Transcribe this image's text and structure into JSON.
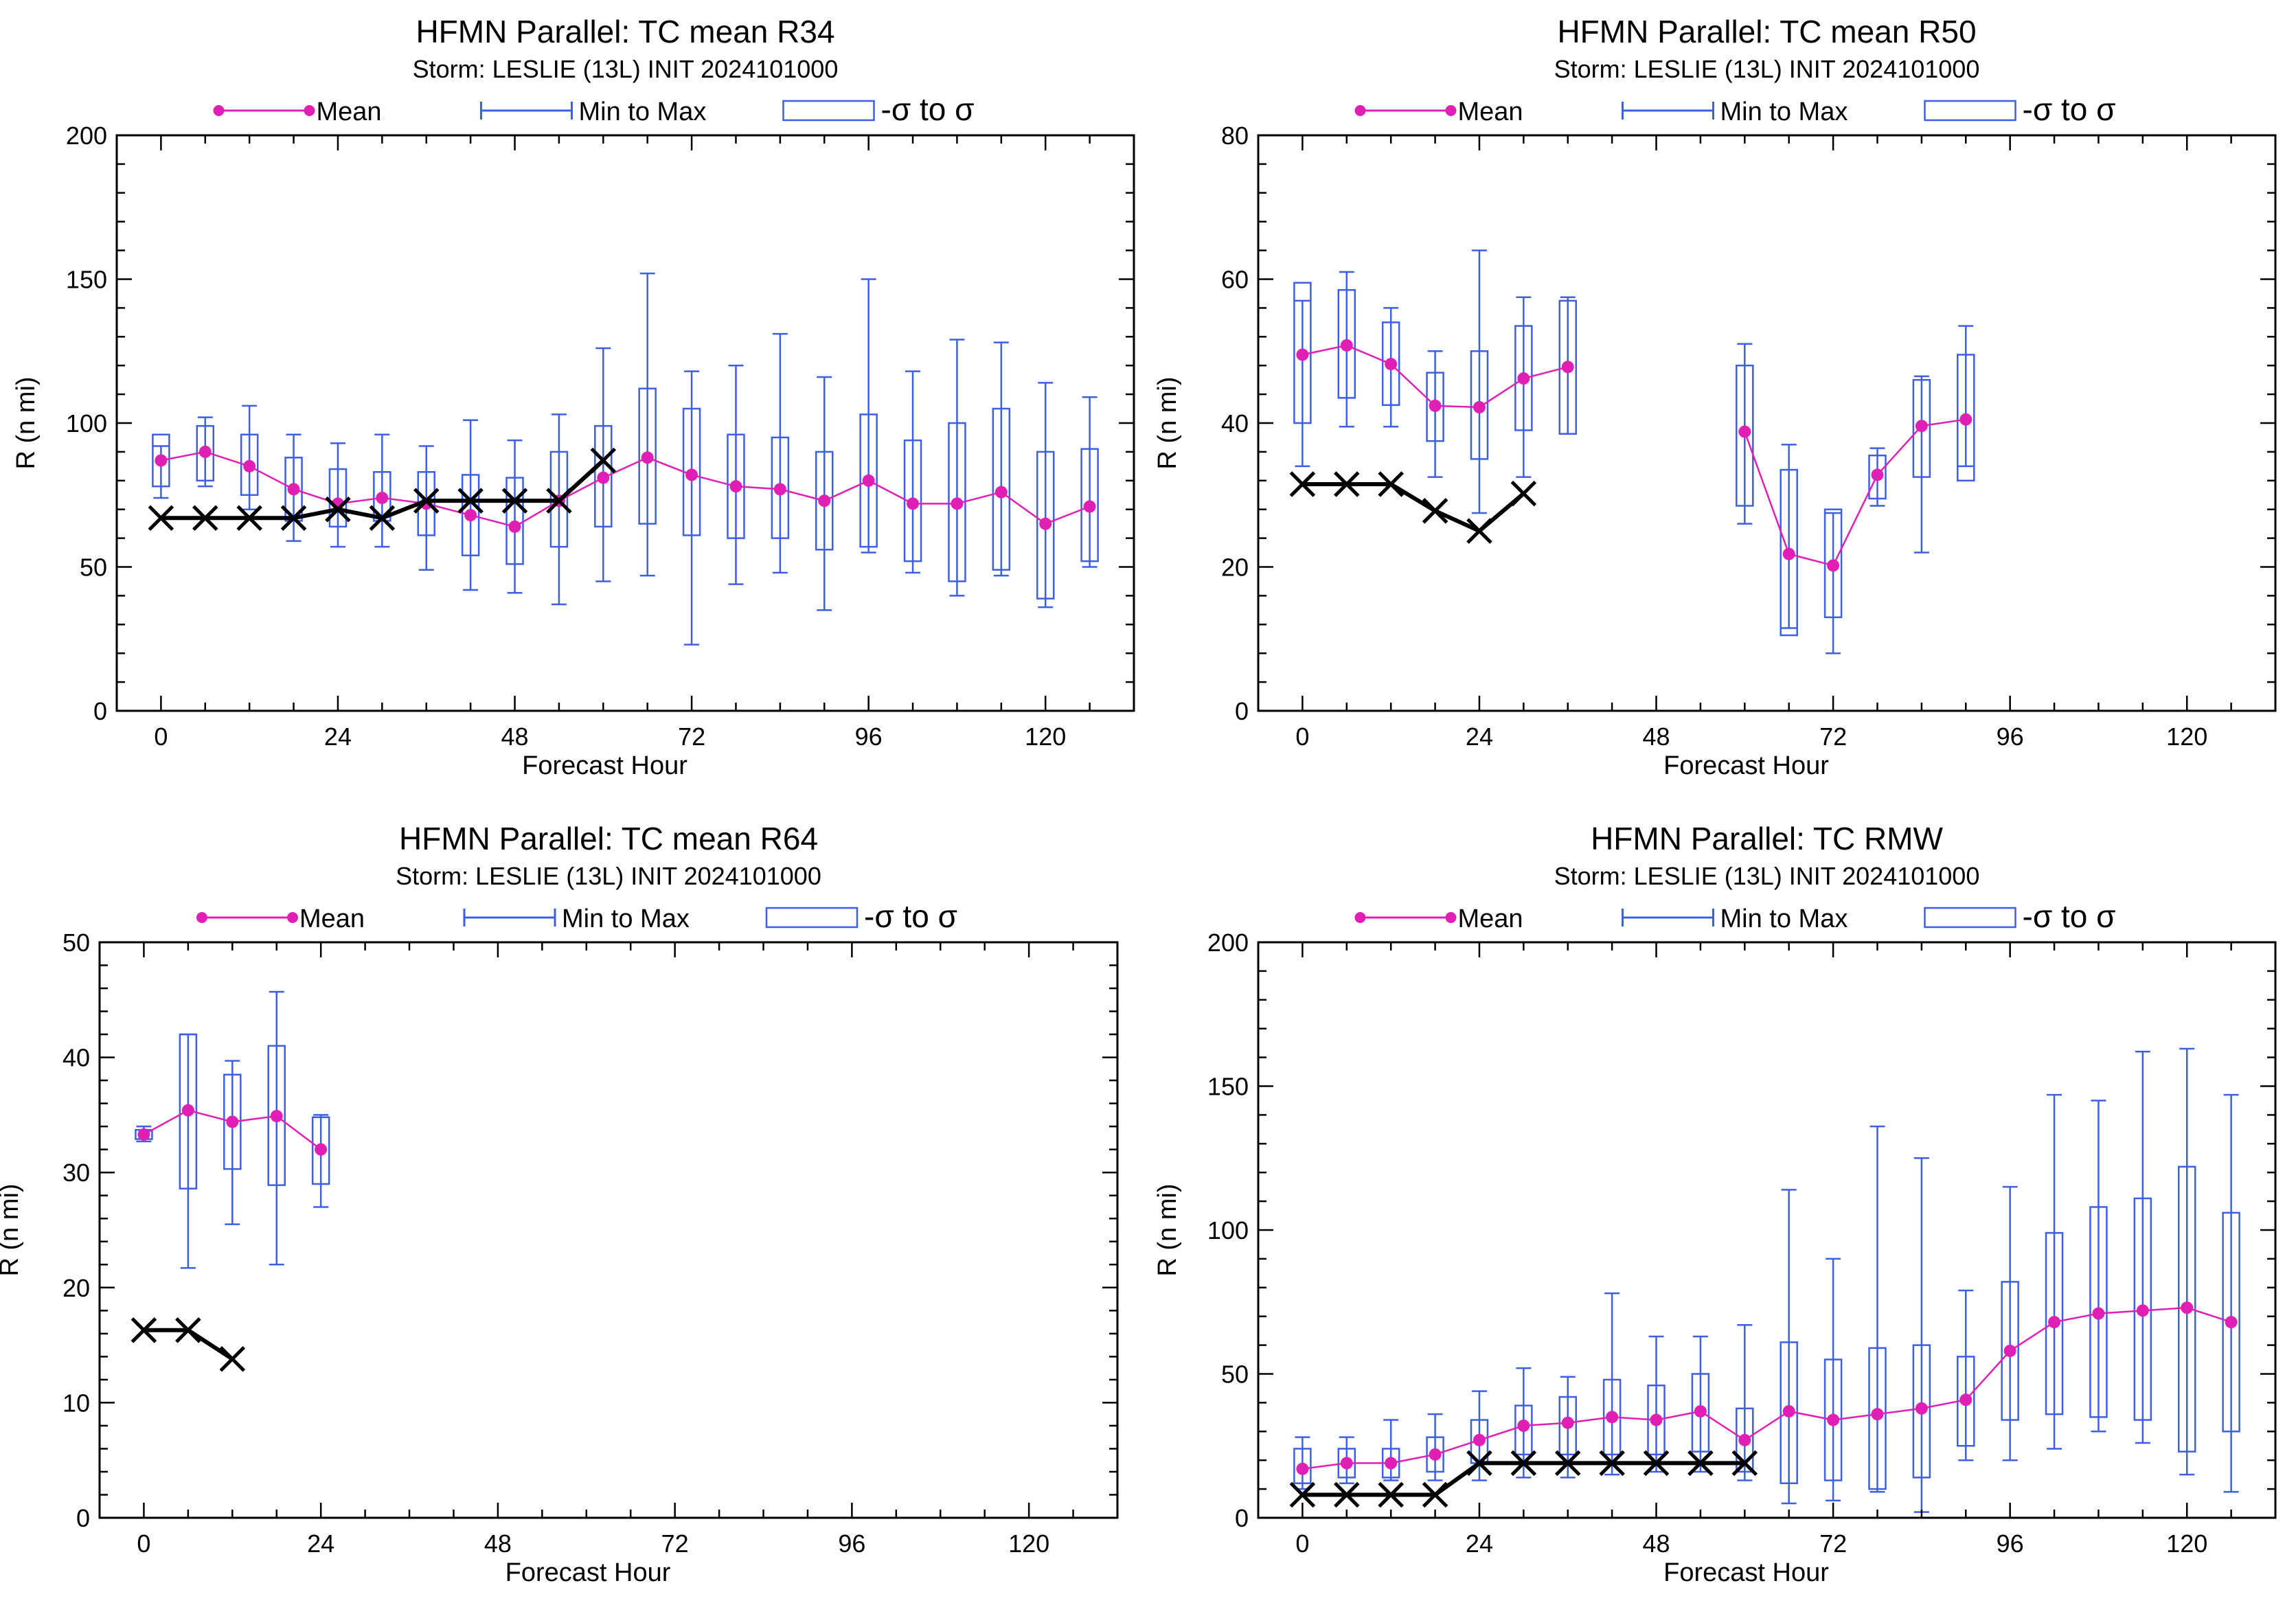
{
  "legend": {
    "mean_label": "Mean",
    "minmax_label": "Min to Max",
    "sigma_label": "-σ to σ"
  },
  "colors": {
    "mean": "#e01fb4",
    "box": "#3d5fe6",
    "best_track": "#000000",
    "frame": "#000000"
  },
  "chart_data": [
    {
      "type": "box",
      "title": "HFMN Parallel: TC mean R34",
      "subtitle": "Storm: LESLIE (13L) INIT 2024101000",
      "xlabel": "Forecast Hour",
      "ylabel": "R (n mi)",
      "xlim": [
        -6,
        132
      ],
      "ylim": [
        0,
        200
      ],
      "xticks": [
        0,
        24,
        48,
        72,
        96,
        120
      ],
      "yticks": [
        0,
        50,
        100,
        150,
        200
      ],
      "grid": false,
      "legend_position": "top",
      "mean": [
        [
          0,
          87
        ],
        [
          6,
          90
        ],
        [
          12,
          85
        ],
        [
          18,
          77
        ],
        [
          24,
          72
        ],
        [
          30,
          74
        ],
        [
          36,
          72
        ],
        [
          42,
          68
        ],
        [
          48,
          64
        ],
        [
          54,
          73
        ],
        [
          60,
          81
        ],
        [
          66,
          88
        ],
        [
          72,
          82
        ],
        [
          78,
          78
        ],
        [
          84,
          77
        ],
        [
          90,
          73
        ],
        [
          96,
          80
        ],
        [
          102,
          72
        ],
        [
          108,
          72
        ],
        [
          114,
          76
        ],
        [
          120,
          65
        ],
        [
          126,
          71
        ]
      ],
      "min_max": [
        [
          0,
          74,
          92
        ],
        [
          6,
          78,
          102
        ],
        [
          12,
          70,
          106
        ],
        [
          18,
          59,
          96
        ],
        [
          24,
          57,
          93
        ],
        [
          30,
          57,
          96
        ],
        [
          36,
          49,
          92
        ],
        [
          42,
          42,
          101
        ],
        [
          48,
          41,
          94
        ],
        [
          54,
          37,
          103
        ],
        [
          60,
          45,
          126
        ],
        [
          66,
          47,
          152
        ],
        [
          72,
          23,
          118
        ],
        [
          78,
          44,
          120
        ],
        [
          84,
          48,
          131
        ],
        [
          90,
          35,
          116
        ],
        [
          96,
          55,
          150
        ],
        [
          102,
          48,
          118
        ],
        [
          108,
          40,
          129
        ],
        [
          114,
          47,
          128
        ],
        [
          120,
          36,
          114
        ],
        [
          126,
          50,
          109
        ]
      ],
      "sigma_box": [
        [
          0,
          78,
          96
        ],
        [
          6,
          80,
          99
        ],
        [
          12,
          75,
          96
        ],
        [
          18,
          66,
          88
        ],
        [
          24,
          64,
          84
        ],
        [
          30,
          66,
          83
        ],
        [
          36,
          61,
          83
        ],
        [
          42,
          54,
          82
        ],
        [
          48,
          51,
          81
        ],
        [
          54,
          57,
          90
        ],
        [
          60,
          64,
          99
        ],
        [
          66,
          65,
          112
        ],
        [
          72,
          61,
          105
        ],
        [
          78,
          60,
          96
        ],
        [
          84,
          60,
          95
        ],
        [
          90,
          56,
          90
        ],
        [
          96,
          57,
          103
        ],
        [
          102,
          52,
          94
        ],
        [
          108,
          45,
          100
        ],
        [
          114,
          49,
          105
        ],
        [
          120,
          39,
          90
        ],
        [
          126,
          52,
          91
        ]
      ],
      "best_track": [
        [
          0,
          67
        ],
        [
          6,
          67
        ],
        [
          12,
          67
        ],
        [
          18,
          67
        ],
        [
          24,
          70
        ],
        [
          30,
          67
        ],
        [
          36,
          73
        ],
        [
          42,
          73
        ],
        [
          48,
          73
        ],
        [
          54,
          73
        ],
        [
          60,
          87
        ]
      ]
    },
    {
      "type": "box",
      "title": "HFMN Parallel: TC mean R50",
      "subtitle": "Storm: LESLIE (13L) INIT 2024101000",
      "xlabel": "Forecast Hour",
      "ylabel": "R (n mi)",
      "xlim": [
        -6,
        132
      ],
      "ylim": [
        0,
        80
      ],
      "xticks": [
        0,
        24,
        48,
        72,
        96,
        120
      ],
      "yticks": [
        0,
        20,
        40,
        60,
        80
      ],
      "grid": false,
      "legend_position": "top",
      "mean": [
        [
          0,
          49.5
        ],
        [
          6,
          50.8
        ],
        [
          12,
          48.2
        ],
        [
          18,
          42.4
        ],
        [
          24,
          42.2
        ],
        [
          30,
          46.2
        ],
        [
          36,
          47.8
        ],
        null,
        null,
        null,
        [
          60,
          38.8
        ],
        [
          66,
          21.8
        ],
        [
          72,
          20.2
        ],
        [
          78,
          32.8
        ],
        [
          84,
          39.6
        ],
        [
          90,
          40.5
        ]
      ],
      "min_max": [
        [
          0,
          34,
          57
        ],
        [
          6,
          39.5,
          61
        ],
        [
          12,
          39.5,
          56
        ],
        [
          18,
          32.5,
          50
        ],
        [
          24,
          27.5,
          64
        ],
        [
          30,
          32.5,
          57.5
        ],
        [
          36,
          38.5,
          57.5
        ],
        null,
        null,
        null,
        [
          60,
          26,
          51
        ],
        [
          66,
          11.5,
          37
        ],
        [
          72,
          8,
          27.5
        ],
        [
          78,
          28.5,
          36.5
        ],
        [
          84,
          22,
          46.5
        ],
        [
          90,
          34,
          53.5
        ]
      ],
      "sigma_box": [
        [
          0,
          40,
          59.5
        ],
        [
          6,
          43.5,
          58.5
        ],
        [
          12,
          42.5,
          54
        ],
        [
          18,
          37.5,
          47
        ],
        [
          24,
          35,
          50
        ],
        [
          30,
          39,
          53.5
        ],
        [
          36,
          38.5,
          57
        ],
        null,
        null,
        null,
        [
          60,
          28.5,
          48
        ],
        [
          66,
          10.5,
          33.5
        ],
        [
          72,
          13,
          28
        ],
        [
          78,
          29.5,
          35.5
        ],
        [
          84,
          32.5,
          46
        ],
        [
          90,
          32,
          49.5
        ]
      ],
      "best_track": [
        [
          0,
          31.5
        ],
        [
          6,
          31.5
        ],
        [
          12,
          31.5
        ],
        [
          18,
          27.8
        ],
        [
          24,
          25
        ],
        [
          30,
          30.2
        ]
      ]
    },
    {
      "type": "box",
      "title": "HFMN Parallel: TC mean R64",
      "subtitle": "Storm: LESLIE (13L) INIT 2024101000",
      "xlabel": "Forecast Hour",
      "ylabel": "R (n mi)",
      "xlim": [
        -6,
        132
      ],
      "ylim": [
        0,
        50
      ],
      "xticks": [
        0,
        24,
        48,
        72,
        96,
        120
      ],
      "yticks": [
        0,
        10,
        20,
        30,
        40,
        50
      ],
      "grid": false,
      "legend_position": "top",
      "mean": [
        [
          0,
          33.3
        ],
        [
          6,
          35.4
        ],
        [
          12,
          34.4
        ],
        [
          18,
          34.9
        ],
        [
          24,
          32
        ]
      ],
      "min_max": [
        [
          0,
          32.7,
          34
        ],
        [
          6,
          21.7,
          42
        ],
        [
          12,
          25.5,
          39.7
        ],
        [
          18,
          22,
          45.7
        ],
        [
          24,
          27,
          35
        ]
      ],
      "sigma_box": [
        [
          0,
          32.9,
          33.7
        ],
        [
          6,
          28.6,
          42
        ],
        [
          12,
          30.3,
          38.5
        ],
        [
          18,
          28.9,
          41
        ],
        [
          24,
          29,
          34.8
        ]
      ],
      "best_track": [
        [
          0,
          16.3
        ],
        [
          6,
          16.3
        ],
        [
          12,
          13.8
        ]
      ]
    },
    {
      "type": "box",
      "title": "HFMN Parallel: TC RMW",
      "subtitle": "Storm: LESLIE (13L) INIT 2024101000",
      "xlabel": "Forecast Hour",
      "ylabel": "R (n mi)",
      "xlim": [
        -6,
        132
      ],
      "ylim": [
        0,
        200
      ],
      "xticks": [
        0,
        24,
        48,
        72,
        96,
        120
      ],
      "yticks": [
        0,
        50,
        100,
        150,
        200
      ],
      "grid": false,
      "legend_position": "top",
      "mean": [
        [
          0,
          17
        ],
        [
          6,
          19
        ],
        [
          12,
          19
        ],
        [
          18,
          22
        ],
        [
          24,
          27
        ],
        [
          30,
          32
        ],
        [
          36,
          33
        ],
        [
          42,
          35
        ],
        [
          48,
          34
        ],
        [
          54,
          37
        ],
        [
          60,
          27
        ],
        [
          66,
          37
        ],
        [
          72,
          34
        ],
        [
          78,
          36
        ],
        [
          84,
          38
        ],
        [
          90,
          41
        ],
        [
          96,
          58
        ],
        [
          102,
          68
        ],
        [
          108,
          71
        ],
        [
          114,
          72
        ],
        [
          120,
          73
        ],
        [
          126,
          68
        ]
      ],
      "min_max": [
        [
          0,
          10,
          28
        ],
        [
          6,
          12,
          28
        ],
        [
          12,
          13,
          34
        ],
        [
          18,
          13,
          36
        ],
        [
          24,
          13,
          44
        ],
        [
          30,
          14,
          52
        ],
        [
          36,
          14,
          49
        ],
        [
          42,
          15,
          78
        ],
        [
          48,
          16,
          63
        ],
        [
          54,
          16,
          63
        ],
        [
          60,
          13,
          67
        ],
        [
          66,
          5,
          114
        ],
        [
          72,
          6,
          90
        ],
        [
          78,
          9,
          136
        ],
        [
          84,
          2,
          125
        ],
        [
          90,
          20,
          79
        ],
        [
          96,
          20,
          115
        ],
        [
          102,
          24,
          147
        ],
        [
          108,
          30,
          145
        ],
        [
          114,
          26,
          162
        ],
        [
          120,
          15,
          163
        ],
        [
          126,
          9,
          147
        ]
      ],
      "sigma_box": [
        [
          0,
          12,
          24
        ],
        [
          6,
          14,
          24
        ],
        [
          12,
          14,
          24
        ],
        [
          18,
          16,
          28
        ],
        [
          24,
          19,
          34
        ],
        [
          30,
          22,
          39
        ],
        [
          36,
          22,
          42
        ],
        [
          42,
          22,
          48
        ],
        [
          48,
          22,
          46
        ],
        [
          54,
          23,
          50
        ],
        [
          60,
          16,
          38
        ],
        [
          66,
          12,
          61
        ],
        [
          72,
          13,
          55
        ],
        [
          78,
          10,
          59
        ],
        [
          84,
          14,
          60
        ],
        [
          90,
          25,
          56
        ],
        [
          96,
          34,
          82
        ],
        [
          102,
          36,
          99
        ],
        [
          108,
          35,
          108
        ],
        [
          114,
          34,
          111
        ],
        [
          120,
          23,
          122
        ],
        [
          126,
          30,
          106
        ]
      ],
      "best_track": [
        [
          0,
          8
        ],
        [
          6,
          8
        ],
        [
          12,
          8
        ],
        [
          18,
          8
        ],
        [
          24,
          19
        ],
        [
          30,
          19
        ],
        [
          36,
          19
        ],
        [
          42,
          19
        ],
        [
          48,
          19
        ],
        [
          54,
          19
        ],
        [
          60,
          19
        ]
      ]
    }
  ]
}
